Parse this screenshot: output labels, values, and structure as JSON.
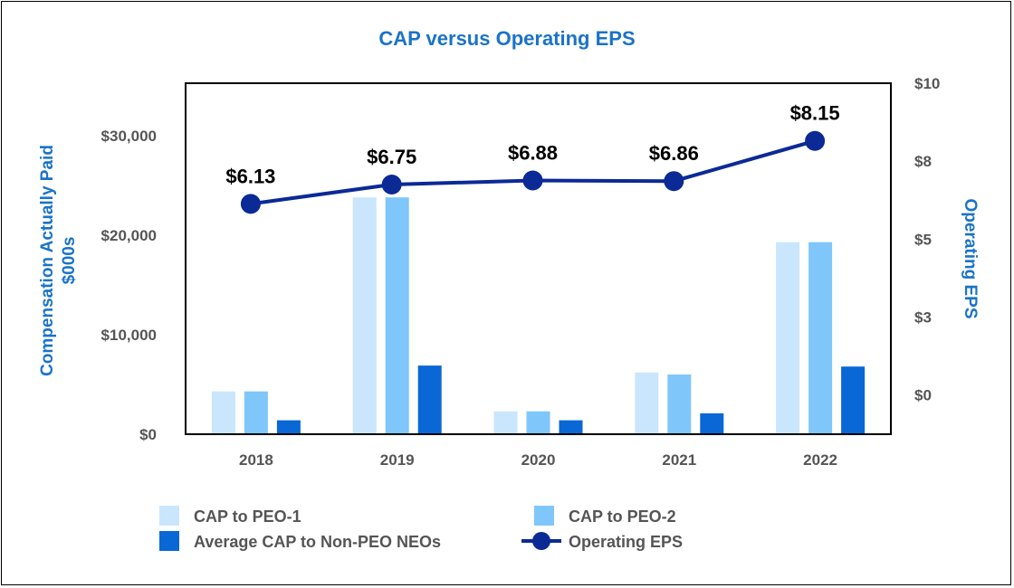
{
  "chart_data": {
    "type": "bar",
    "title": "CAP versus Operating EPS",
    "categories": [
      "2018",
      "2019",
      "2020",
      "2021",
      "2022"
    ],
    "series": [
      {
        "name": "CAP to PEO-1",
        "type": "bar",
        "axis": "left",
        "color": "#c9e6fd",
        "values": [
          4300,
          23800,
          2300,
          6200,
          19300
        ]
      },
      {
        "name": "CAP to PEO-2",
        "type": "bar",
        "axis": "left",
        "color": "#7fc6fb",
        "values": [
          4300,
          23800,
          2300,
          6000,
          19300
        ]
      },
      {
        "name": "Average CAP to Non-PEO NEOs",
        "type": "bar",
        "axis": "left",
        "color": "#0a67d6",
        "values": [
          1400,
          6900,
          1400,
          2100,
          6800
        ]
      },
      {
        "name": "Operating EPS",
        "type": "line",
        "axis": "right",
        "color": "#0b2a96",
        "values": [
          6.13,
          6.75,
          6.88,
          6.86,
          8.15
        ],
        "labels": [
          "$6.13",
          "$6.75",
          "$6.88",
          "$6.86",
          "$8.15"
        ]
      }
    ],
    "y_left": {
      "label_line1": "Compensation Actually Paid",
      "label_line2": "$000s",
      "ylim": [
        0,
        35000
      ],
      "ticks": [
        0,
        10000,
        20000,
        30000
      ],
      "tick_labels": [
        "$0",
        "$10,000",
        "$20,000",
        "$30,000"
      ]
    },
    "y_right": {
      "label": "Operating EPS",
      "ylim": [
        -1.26,
        10
      ],
      "ticks": [
        0,
        2.5,
        5,
        7.5,
        10
      ],
      "tick_labels": [
        "$0",
        "$3",
        "$5",
        "$8",
        "$10"
      ]
    },
    "legend": [
      "CAP to PEO-1",
      "CAP to PEO-2",
      "Average CAP to Non-PEO NEOs",
      "Operating EPS"
    ],
    "legend_position": "bottom",
    "grid": false,
    "colors": {
      "title": "#1a73c8",
      "axis_title": "#1a73c8",
      "tick": "#555555",
      "line": "#0b2a96"
    }
  }
}
